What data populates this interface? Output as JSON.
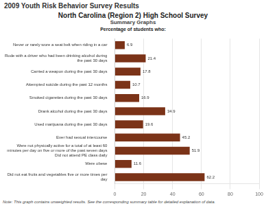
{
  "chart_data": {
    "type": "bar",
    "orientation": "horizontal",
    "header": "2009 Youth Risk Behavior Survey Results",
    "title": "North Carolina (Region 2) High School Survey",
    "subtitle": "Summary Graphs",
    "ylabel": "Percentage of students who:",
    "note": "Note: This graph contains unweighted results. See the corresponding summary table for detailed explanation of data.",
    "categories": [
      "Never or rarely wore a seat belt when riding in a car",
      "Rode with a driver who had been drinking alcohol during\nthe past 30 days",
      "Carried a weapon during the past 30 days",
      "Attempted suicide during the past 12 months",
      "Smoked cigarettes during the past 30 days",
      "Drank alcohol during the past 30 days",
      "Used marijuana during the past 30 days",
      "Ever had sexual intercourse",
      "Were not physically active for a total of at least 60\nminutes per day on five or more of the past seven days\nDid not attend PE class daily",
      "Were obese",
      "Did not eat fruits and vegetables five or more times per\nday"
    ],
    "values": [
      6.9,
      21.4,
      17.8,
      10.7,
      16.9,
      34.9,
      19.6,
      45.2,
      51.9,
      11.6,
      62.2
    ],
    "color": "#7b3318",
    "xlim": [
      0,
      100
    ],
    "xticks": [
      0,
      20,
      40,
      60,
      80,
      100
    ],
    "grid": true,
    "data_labels": true
  }
}
